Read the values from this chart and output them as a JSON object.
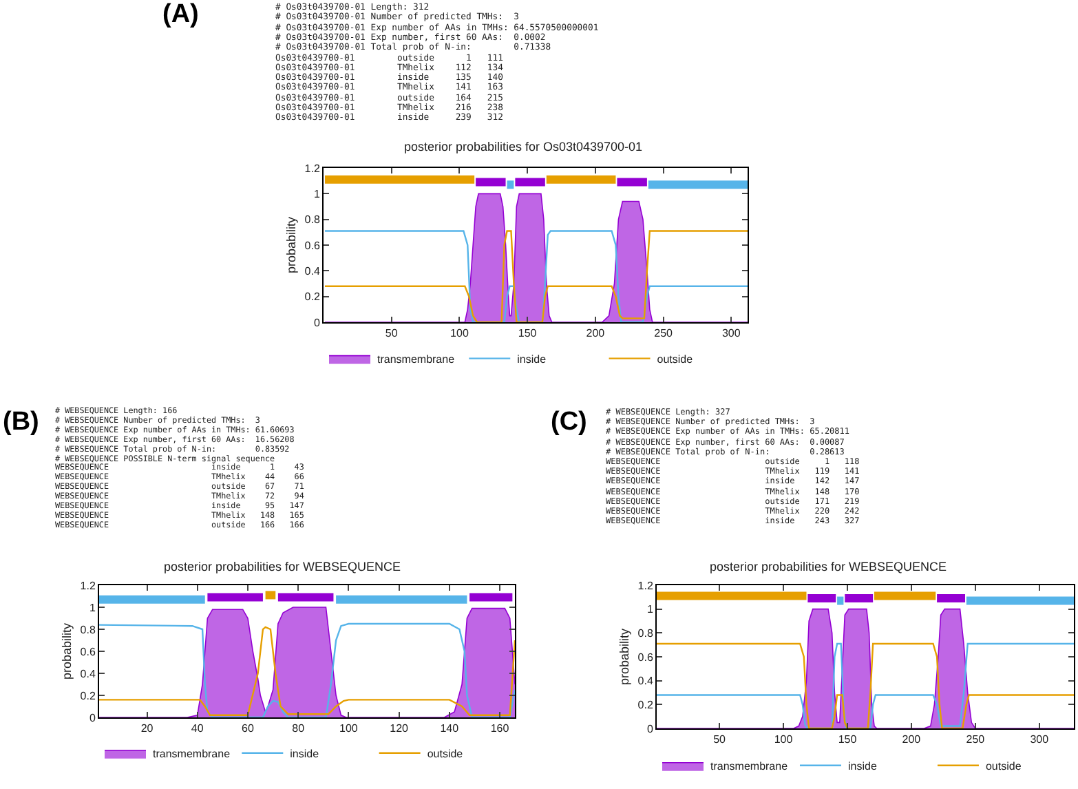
{
  "chart_data": [
    {
      "type": "line",
      "title": "posterior probabilities for Os03t0439700-01",
      "ylabel": "probability",
      "xlim": [
        0,
        312
      ],
      "xticks": [
        50,
        100,
        150,
        200,
        250,
        300
      ],
      "ylim": [
        0,
        1.2
      ],
      "yticks": [
        0,
        0.2,
        0.4,
        0.6,
        0.8,
        1,
        1.2
      ],
      "legend": "bottom",
      "annotations": [
        "(A)",
        "# Os03t0439700-01 Length: 312",
        "# Os03t0439700-01 Number of predicted TMHs:  3",
        "# Os03t0439700-01 Exp number of AAs in TMHs: 64.5570500000001",
        "# Os03t0439700-01 Exp number, first 60 AAs:  0.0002",
        "# Os03t0439700-01 Total prob of N-in:        0.71338",
        "Os03t0439700-01        outside      1   111",
        "Os03t0439700-01        TMhelix    112   134",
        "Os03t0439700-01        inside     135   140",
        "Os03t0439700-01        TMhelix    141   163",
        "Os03t0439700-01        outside    164   215",
        "Os03t0439700-01        TMhelix    216   238",
        "Os03t0439700-01        inside     239   312"
      ],
      "series": [
        {
          "name": "transmembrane",
          "type": "area",
          "color": "#9400d3",
          "x": [
            1,
            104,
            106,
            108,
            110,
            112,
            114,
            130,
            132,
            134,
            136,
            137,
            138,
            140,
            142,
            144,
            160,
            162,
            164,
            166,
            168,
            205,
            210,
            214,
            217,
            220,
            232,
            235,
            238,
            240,
            242,
            312
          ],
          "values": [
            0,
            0,
            0.1,
            0.3,
            0.6,
            0.9,
            1,
            1,
            0.9,
            0.6,
            0.2,
            0.05,
            0.05,
            0.3,
            0.9,
            1,
            1,
            0.8,
            0.3,
            0.05,
            0,
            0,
            0.05,
            0.3,
            0.8,
            0.94,
            0.94,
            0.8,
            0.4,
            0.1,
            0,
            0
          ]
        },
        {
          "name": "inside",
          "color": "#56b4e9",
          "x": [
            1,
            103,
            106,
            108,
            110,
            133,
            135,
            137,
            140,
            142,
            144,
            161,
            163,
            165,
            167,
            212,
            215,
            217,
            219,
            235,
            238,
            240,
            312
          ],
          "values": [
            0.71,
            0.71,
            0.6,
            0.1,
            0,
            0,
            0.2,
            0.28,
            0.28,
            0.1,
            0,
            0,
            0.3,
            0.68,
            0.71,
            0.71,
            0.6,
            0.2,
            0,
            0,
            0.2,
            0.28,
            0.28
          ]
        },
        {
          "name": "outside",
          "color": "#e69f00",
          "x": [
            1,
            104,
            107,
            110,
            113,
            131,
            133,
            135,
            138,
            140,
            142,
            161,
            163,
            165,
            212,
            215,
            218,
            220,
            236,
            238,
            240,
            312
          ],
          "values": [
            0.28,
            0.28,
            0.2,
            0.05,
            0,
            0,
            0.6,
            0.71,
            0.71,
            0.3,
            0,
            0,
            0.2,
            0.28,
            0.28,
            0.2,
            0.05,
            0.03,
            0.03,
            0.4,
            0.71,
            0.71
          ]
        },
        {
          "color": "#e69f00",
          "x": [
            1,
            111,
            112,
            164,
            215
          ],
          "values": [
            1.11,
            1.11,
            null,
            1.11,
            1.11
          ]
        },
        {
          "color": "#56b4e9",
          "x": [
            135,
            140,
            141,
            239,
            312
          ],
          "values": [
            1.07,
            1.07,
            null,
            1.07,
            1.07
          ]
        },
        {
          "color": "#9400d3",
          "x": [
            112,
            134,
            135,
            141,
            163,
            164,
            216,
            238
          ],
          "values": [
            1.09,
            1.09,
            null,
            1.09,
            1.09,
            null,
            1.09,
            1.09
          ]
        }
      ]
    },
    {
      "type": "line",
      "title": "posterior probabilities for WEBSEQUENCE",
      "ylabel": "probability",
      "xlim": [
        1,
        166
      ],
      "xticks": [
        20,
        40,
        60,
        80,
        100,
        120,
        140,
        160
      ],
      "ylim": [
        0,
        1.2
      ],
      "yticks": [
        0,
        0.2,
        0.4,
        0.6,
        0.8,
        1,
        1.2
      ],
      "legend": "bottom",
      "annotations": [
        "(B)",
        "# WEBSEQUENCE Length: 166",
        "# WEBSEQUENCE Number of predicted TMHs:  3",
        "# WEBSEQUENCE Exp number of AAs in TMHs: 61.60693",
        "# WEBSEQUENCE Exp number, first 60 AAs:  16.56208",
        "# WEBSEQUENCE Total prob of N-in:        0.83592",
        "# WEBSEQUENCE POSSIBLE N-term signal sequence",
        "WEBSEQUENCE                     inside      1    43",
        "WEBSEQUENCE                     TMhelix    44    66",
        "WEBSEQUENCE                     outside    67    71",
        "WEBSEQUENCE                     TMhelix    72    94",
        "WEBSEQUENCE                     inside     95   147",
        "WEBSEQUENCE                     TMhelix   148   165",
        "WEBSEQUENCE                     outside   166   166"
      ],
      "series": [
        {
          "name": "transmembrane",
          "type": "area",
          "color": "#9400d3",
          "x": [
            1,
            36,
            40,
            42,
            44,
            46,
            58,
            60,
            62,
            64,
            65,
            67,
            68,
            70,
            72,
            74,
            78,
            91,
            93,
            95,
            97,
            99,
            138,
            142,
            145,
            147,
            149,
            162,
            164,
            166
          ],
          "values": [
            0,
            0,
            0.02,
            0.3,
            0.9,
            0.98,
            0.98,
            0.9,
            0.6,
            0.35,
            0.2,
            0.05,
            0.1,
            0.25,
            0.85,
            0.95,
            1,
            1,
            0.6,
            0.2,
            0.02,
            0,
            0,
            0.05,
            0.3,
            0.9,
            0.99,
            0.99,
            0.9,
            0.3
          ]
        },
        {
          "name": "inside",
          "color": "#56b4e9",
          "x": [
            1,
            38,
            42,
            43,
            44,
            46,
            66,
            68,
            70,
            72,
            74,
            76,
            91,
            93,
            95,
            97,
            100,
            140,
            144,
            146,
            147,
            149,
            164,
            166
          ],
          "values": [
            0.84,
            0.83,
            0.8,
            0.3,
            0.05,
            0,
            0,
            0.1,
            0.15,
            0.14,
            0.05,
            0,
            0,
            0.3,
            0.7,
            0.83,
            0.85,
            0.85,
            0.8,
            0.6,
            0.2,
            0,
            0,
            0.25
          ]
        },
        {
          "name": "outside",
          "color": "#e69f00",
          "x": [
            1,
            41,
            43,
            45,
            60,
            64,
            66,
            67,
            69,
            71,
            73,
            76,
            92,
            95,
            98,
            100,
            140,
            145,
            148,
            164,
            166
          ],
          "values": [
            0.16,
            0.16,
            0.1,
            0.02,
            0.02,
            0.4,
            0.8,
            0.82,
            0.8,
            0.4,
            0.1,
            0.03,
            0.03,
            0.1,
            0.15,
            0.16,
            0.16,
            0.1,
            0.02,
            0.02,
            0.7
          ]
        },
        {
          "color": "#56b4e9",
          "x": [
            1,
            43,
            44,
            95,
            147
          ],
          "values": [
            1.07,
            1.07,
            null,
            1.07,
            1.07
          ]
        },
        {
          "color": "#e69f00",
          "x": [
            67,
            71
          ],
          "values": [
            1.11,
            1.11
          ]
        },
        {
          "color": "#9400d3",
          "x": [
            44,
            66,
            67,
            72,
            94,
            95,
            148,
            165
          ],
          "values": [
            1.09,
            1.09,
            null,
            1.09,
            1.09,
            null,
            1.09,
            1.09
          ]
        }
      ]
    },
    {
      "type": "line",
      "title": "posterior probabilities for WEBSEQUENCE",
      "ylabel": "probability",
      "xlim": [
        1,
        327
      ],
      "xticks": [
        50,
        100,
        150,
        200,
        250,
        300
      ],
      "ylim": [
        0,
        1.2
      ],
      "yticks": [
        0,
        0.2,
        0.4,
        0.6,
        0.8,
        1,
        1.2
      ],
      "legend": "bottom",
      "annotations": [
        "(C)",
        "# WEBSEQUENCE Length: 327",
        "# WEBSEQUENCE Number of predicted TMHs:  3",
        "# WEBSEQUENCE Exp number of AAs in TMHs: 65.20811",
        "# WEBSEQUENCE Exp number, first 60 AAs:  0.00087",
        "# WEBSEQUENCE Total prob of N-in:        0.28613",
        "WEBSEQUENCE                     outside     1   118",
        "WEBSEQUENCE                     TMhelix   119   141",
        "WEBSEQUENCE                     inside    142   147",
        "WEBSEQUENCE                     TMhelix   148   170",
        "WEBSEQUENCE                     outside   171   219",
        "WEBSEQUENCE                     TMhelix   220   242",
        "WEBSEQUENCE                     inside    243   327"
      ],
      "series": [
        {
          "name": "transmembrane",
          "type": "area",
          "color": "#9400d3",
          "x": [
            1,
            108,
            112,
            115,
            118,
            120,
            123,
            135,
            138,
            140,
            142,
            144,
            146,
            148,
            151,
            165,
            167,
            169,
            171,
            173,
            210,
            215,
            218,
            221,
            223,
            226,
            238,
            241,
            244,
            247,
            250,
            327
          ],
          "values": [
            0,
            0,
            0.02,
            0.1,
            0.4,
            0.9,
            1,
            1,
            0.8,
            0.3,
            0.05,
            0.05,
            0.5,
            0.95,
            1,
            1,
            0.8,
            0.2,
            0.02,
            0,
            0,
            0.02,
            0.2,
            0.6,
            0.95,
            1,
            1,
            0.7,
            0.3,
            0.05,
            0,
            0
          ]
        },
        {
          "name": "inside",
          "color": "#56b4e9",
          "x": [
            1,
            113,
            115,
            117,
            119,
            138,
            140,
            142,
            145,
            147,
            149,
            168,
            170,
            172,
            217,
            220,
            223,
            238,
            241,
            244,
            327
          ],
          "values": [
            0.28,
            0.28,
            0.2,
            0.03,
            0,
            0,
            0.6,
            0.71,
            0.71,
            0.2,
            0,
            0,
            0.2,
            0.28,
            0.28,
            0.2,
            0.02,
            0.02,
            0.3,
            0.71,
            0.71
          ]
        },
        {
          "name": "outside",
          "color": "#e69f00",
          "x": [
            1,
            113,
            116,
            118,
            120,
            138,
            140,
            142,
            146,
            148,
            150,
            166,
            168,
            170,
            217,
            220,
            222,
            224,
            240,
            243,
            245,
            327
          ],
          "values": [
            0.71,
            0.71,
            0.6,
            0.2,
            0,
            0,
            0.1,
            0.28,
            0.28,
            0.05,
            0,
            0,
            0.3,
            0.71,
            0.71,
            0.6,
            0.2,
            0,
            0,
            0.2,
            0.28,
            0.28
          ]
        },
        {
          "color": "#e69f00",
          "x": [
            1,
            118,
            119,
            171,
            219
          ],
          "values": [
            1.11,
            1.11,
            null,
            1.11,
            1.11
          ]
        },
        {
          "color": "#56b4e9",
          "x": [
            142,
            147,
            148,
            243,
            327
          ],
          "values": [
            1.07,
            1.07,
            null,
            1.07,
            1.07
          ]
        },
        {
          "color": "#9400d3",
          "x": [
            119,
            141,
            142,
            148,
            170,
            171,
            220,
            242
          ],
          "values": [
            1.09,
            1.09,
            null,
            1.09,
            1.09,
            null,
            1.09,
            1.09
          ]
        }
      ]
    }
  ]
}
